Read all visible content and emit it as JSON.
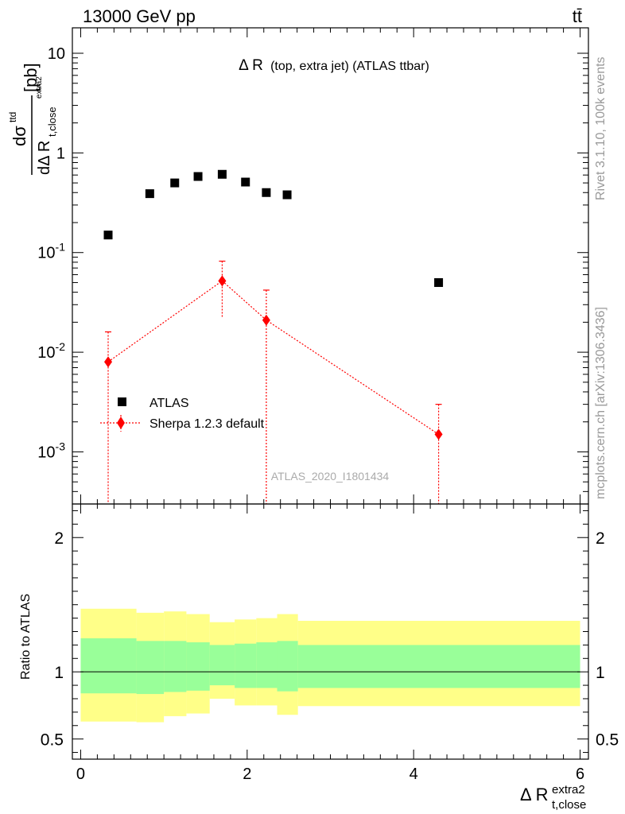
{
  "header": {
    "energy_label": "13000 GeV pp",
    "process_label": "tt̄"
  },
  "side_labels": {
    "rivet": "Rivet 3.1.10,  100k events",
    "mcplots": "mcplots.cern.ch [arXiv:1306.3436]"
  },
  "chart_data": [
    {
      "type": "scatter",
      "panel": "main",
      "title": "Δ R (top, extra jet) (ATLAS ttbar)",
      "ylabel": "dσ^ttd / dΔ R_t,close^extra2 [pb]",
      "yscale": "log",
      "ylim": [
        0.0003,
        18
      ],
      "xlim": [
        -0.1,
        6.1
      ],
      "y_tick_labels": [
        "10^-3",
        "10^-2",
        "10^-1",
        "1",
        "10"
      ],
      "watermark": "ATLAS_2020_I1801434",
      "legend_position": "lower-left",
      "series": [
        {
          "name": "ATLAS",
          "color": "#000000",
          "marker": "square",
          "x": [
            0.33,
            0.83,
            1.13,
            1.41,
            1.7,
            1.98,
            2.23,
            2.48,
            4.3
          ],
          "y": [
            0.15,
            0.39,
            0.5,
            0.58,
            0.61,
            0.51,
            0.4,
            0.38,
            0.05
          ]
        },
        {
          "name": "Sherpa 1.2.3 default",
          "color": "#ff0000",
          "marker": "diamond",
          "line": "dotted",
          "x": [
            0.33,
            1.7,
            2.23,
            4.3
          ],
          "y": [
            0.008,
            0.052,
            0.021,
            0.0015
          ],
          "y_low": [
            0.0003,
            0.022,
            0.0003,
            0.0003
          ],
          "y_high": [
            0.016,
            0.082,
            0.042,
            0.003
          ]
        }
      ]
    },
    {
      "type": "area",
      "panel": "ratio",
      "ylabel": "Ratio to ATLAS",
      "xlabel": "Δ R_t,close^extra2",
      "xlim": [
        -0.1,
        6.1
      ],
      "ylim": [
        0.35,
        2.25
      ],
      "x_tick_labels": [
        "0",
        "2",
        "4",
        "6"
      ],
      "y_tick_labels": [
        "0.5",
        "1",
        "2"
      ],
      "reference_line": 1,
      "bands": [
        {
          "name": "inner",
          "color": "#99ff99",
          "edges": [
            0.0,
            0.67,
            1.0,
            1.27,
            1.55,
            1.85,
            2.11,
            2.36,
            2.61,
            6.0
          ],
          "low": [
            0.84,
            0.835,
            0.85,
            0.86,
            0.9,
            0.88,
            0.88,
            0.855,
            0.88
          ],
          "high": [
            1.25,
            1.23,
            1.23,
            1.22,
            1.2,
            1.21,
            1.22,
            1.23,
            1.2
          ]
        },
        {
          "name": "outer",
          "color": "#ffff88",
          "edges": [
            0.0,
            0.67,
            1.0,
            1.27,
            1.55,
            1.85,
            2.11,
            2.36,
            2.61,
            6.0
          ],
          "low": [
            0.63,
            0.625,
            0.67,
            0.69,
            0.8,
            0.75,
            0.75,
            0.68,
            0.745
          ],
          "high": [
            1.47,
            1.44,
            1.45,
            1.43,
            1.37,
            1.39,
            1.4,
            1.43,
            1.38
          ]
        }
      ]
    }
  ],
  "legend": {
    "data_label": "ATLAS",
    "mc_label": "Sherpa 1.2.3 default"
  },
  "axis_text": {
    "main_ylabel_num": "dσ",
    "main_ylabel_num_sup": "ttd",
    "main_ylabel_den": "dΔ R",
    "main_ylabel_den_sub": "t,close",
    "main_ylabel_den_sup": "extra2",
    "main_ylabel_unit": "[pb]",
    "xlabel_main": "Δ R",
    "xlabel_sup": "extra2",
    "xlabel_sub": "t,close",
    "title_main": "Δ R",
    "title_rest": "(top, extra jet) (ATLAS ttbar)",
    "ratio_ylabel": "Ratio to ATLAS"
  }
}
